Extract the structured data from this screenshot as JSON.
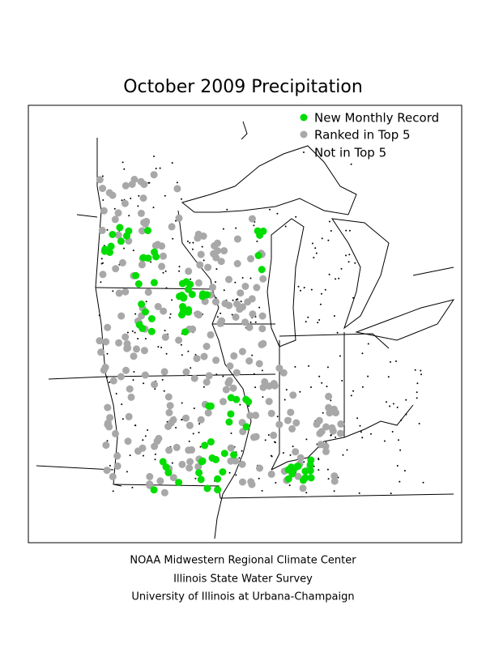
{
  "title": "October 2009 Precipitation",
  "legend": [
    "New Monthly Record",
    "Ranked in Top 5",
    "Not in Top 5"
  ],
  "footer": [
    "NOAA Midwestern Regional Climate Center",
    "Illinois State Water Survey",
    "University of Illinois at Urbana-Champaign"
  ]
}
